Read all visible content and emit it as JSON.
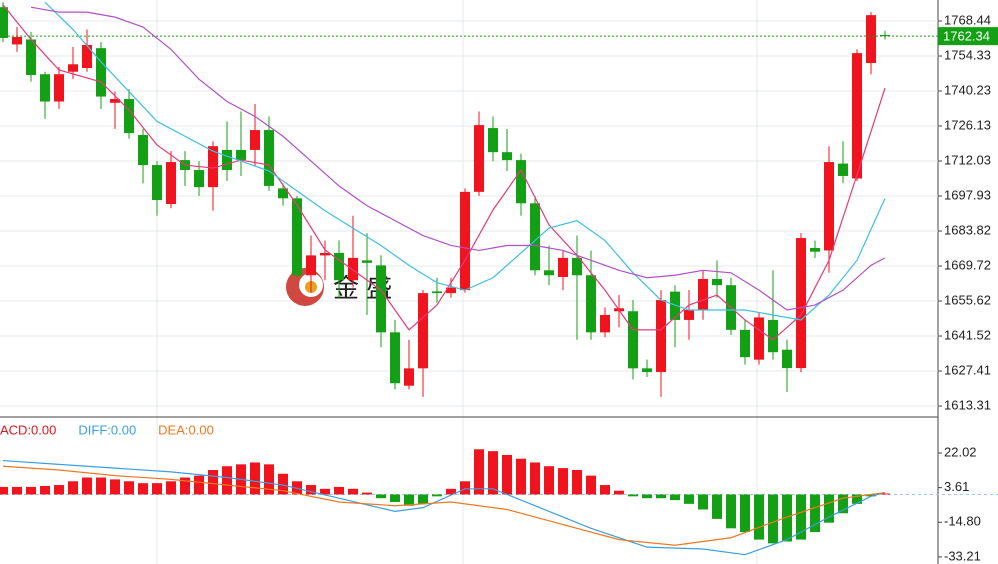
{
  "chart_data": [
    {
      "type": "candlestick",
      "open": [
        1774,
        1759,
        1761,
        1747,
        1736,
        1748,
        1749.5,
        1757.5,
        1735.5,
        1737,
        1722.5,
        1710.4,
        1694.7,
        1712.4,
        1708.4,
        1701.5,
        1716.5,
        1716.5,
        1716.5,
        1724.5,
        1701,
        1697,
        1666,
        1674,
        1675,
        1664,
        1672,
        1670,
        1643,
        1621.5,
        1628.5,
        1659.5,
        1658.8,
        1660,
        1699.6,
        1725.3,
        1715.6,
        1712.4,
        1695,
        1668,
        1665.3,
        1673,
        1666,
        1643,
        1651.5,
        1651.5,
        1628.5,
        1627,
        1659.4,
        1648,
        1652,
        1664.5,
        1662,
        1644,
        1632,
        1648,
        1636,
        1628.6,
        1677,
        1676,
        1711,
        1705,
        1751.5,
        1762.8
      ],
      "high": [
        1776,
        1766,
        1764,
        1748,
        1750,
        1758,
        1765,
        1760,
        1740,
        1741,
        1725,
        1712,
        1716,
        1716,
        1712,
        1720,
        1728,
        1732,
        1735,
        1730,
        1703,
        1698,
        1682,
        1680,
        1680,
        1690,
        1683,
        1674,
        1648,
        1640,
        1660,
        1665,
        1665,
        1701,
        1732,
        1730,
        1725,
        1715,
        1698,
        1678,
        1676,
        1682,
        1676,
        1653,
        1658,
        1656,
        1632,
        1660,
        1662,
        1660,
        1668,
        1672,
        1665,
        1648,
        1651,
        1668,
        1640,
        1683,
        1680,
        1718,
        1720,
        1757,
        1772,
        1764.5
      ],
      "low": [
        1760,
        1756,
        1744,
        1729,
        1733,
        1745,
        1748,
        1733,
        1725,
        1721,
        1703,
        1690,
        1693,
        1702,
        1698,
        1692,
        1704,
        1706,
        1710,
        1700,
        1694,
        1665,
        1659,
        1664,
        1657,
        1661,
        1650,
        1637,
        1620,
        1620,
        1617,
        1655,
        1657,
        1659,
        1698,
        1712,
        1708,
        1690,
        1666,
        1662,
        1660,
        1640,
        1640,
        1641,
        1645,
        1624,
        1625,
        1617,
        1637,
        1640,
        1648,
        1657,
        1642,
        1630,
        1630,
        1632,
        1619,
        1627,
        1673,
        1667,
        1703,
        1704,
        1747,
        1761
      ],
      "close": [
        1761.6,
        1762,
        1746.7,
        1736,
        1747,
        1751,
        1758.8,
        1738,
        1737,
        1723.3,
        1710.4,
        1696.3,
        1711.6,
        1708.4,
        1701.5,
        1718,
        1708.4,
        1712.4,
        1724.5,
        1702,
        1697,
        1666,
        1674,
        1675,
        1664,
        1673,
        1671,
        1643,
        1622.5,
        1628.5,
        1658.8,
        1658.8,
        1661,
        1699.6,
        1726.5,
        1715.6,
        1712.4,
        1695,
        1668,
        1666,
        1673,
        1666,
        1643,
        1650,
        1652.7,
        1628.5,
        1627,
        1656,
        1648,
        1652,
        1664.5,
        1662,
        1644,
        1633,
        1649,
        1635,
        1628.6,
        1681,
        1675.5,
        1711.6,
        1706,
        1755.5,
        1770.8,
        1762.34
      ],
      "up_color": "#f0141e",
      "down_color": "#14a014",
      "ylim": [
        1609.7,
        1776.9
      ],
      "yticks": [
        1768.44,
        1754.33,
        1740.23,
        1726.13,
        1712.03,
        1697.93,
        1683.82,
        1669.72,
        1655.62,
        1641.52,
        1627.41,
        1613.31
      ],
      "grid": true,
      "series": [
        {
          "color": "#e8387a",
          "x": [
            0,
            2,
            4,
            7,
            9,
            11,
            13,
            15,
            17,
            19,
            21,
            23,
            25,
            27,
            29,
            31,
            33,
            35,
            37,
            39,
            41,
            43,
            45,
            47,
            49,
            51,
            53,
            55,
            57,
            59,
            61,
            63
          ],
          "values": [
            1775,
            1761,
            1748.7,
            1743.9,
            1732.6,
            1718.5,
            1710.4,
            1709.2,
            1712.4,
            1710.4,
            1694.3,
            1676.2,
            1668.1,
            1660,
            1644,
            1654,
            1672,
            1692.3,
            1708.4,
            1686.3,
            1674,
            1660,
            1644,
            1644,
            1654,
            1658,
            1648,
            1640,
            1650,
            1672,
            1706.4,
            1741.4
          ]
        },
        {
          "color": "#3cc0e0",
          "x": [
            3,
            5,
            7,
            9,
            11,
            13,
            15,
            17,
            19,
            21,
            23,
            25,
            27,
            29,
            31,
            33,
            35,
            37,
            39,
            41,
            43,
            45,
            47,
            49,
            51,
            53,
            55,
            57,
            59,
            61,
            63
          ],
          "values": [
            1776,
            1765,
            1752,
            1740,
            1728,
            1722,
            1716,
            1712,
            1708,
            1700,
            1692,
            1685,
            1678,
            1670,
            1663,
            1660,
            1665,
            1675,
            1685,
            1688,
            1680,
            1667,
            1656,
            1652,
            1652,
            1652,
            1650,
            1648,
            1658,
            1672,
            1697
          ]
        },
        {
          "color": "#b050c8",
          "x": [
            2,
            4,
            6,
            8,
            10,
            12,
            14,
            16,
            18,
            20,
            22,
            24,
            26,
            28,
            30,
            32,
            34,
            36,
            38,
            40,
            42,
            44,
            46,
            48,
            50,
            52,
            54,
            56,
            58,
            60,
            62,
            63
          ],
          "values": [
            1774,
            1772,
            1772,
            1770,
            1766,
            1757,
            1745,
            1736,
            1730,
            1722,
            1712,
            1702,
            1694,
            1688,
            1682,
            1678,
            1676,
            1678,
            1678,
            1676,
            1672,
            1668,
            1665,
            1666,
            1668,
            1667,
            1660,
            1652,
            1654,
            1660,
            1670,
            1673
          ]
        }
      ],
      "last_price": {
        "value": 1762.34,
        "color": "#14a014"
      },
      "watermark": "金 盛"
    },
    {
      "type": "macd",
      "values": [
        4,
        4,
        4,
        4.5,
        5,
        7,
        9,
        9,
        8,
        7,
        6,
        6,
        7,
        9,
        10,
        13,
        15,
        16,
        17,
        16,
        11,
        7,
        5,
        3,
        4,
        3,
        1,
        -2,
        -4,
        -6,
        -5,
        -1,
        3,
        7,
        24,
        23,
        21,
        19,
        17,
        15,
        14,
        13,
        10,
        5,
        2,
        -1,
        -2,
        -2,
        -3,
        -5,
        -8,
        -13,
        -18,
        -20,
        -24,
        -26,
        -25,
        -24,
        -20,
        -15,
        -10,
        -5,
        -1,
        0.5
      ],
      "pos_color": "#f0141e",
      "neg_color": "#14a014",
      "ylim": [
        -35.9,
        40.1
      ],
      "yticks": [
        22.02,
        3.61,
        {
          "value": -14.8,
          "label": "-14.80"
        },
        -33.21
      ],
      "series": [
        {
          "color": "#3c9ee0",
          "x": [
            0,
            4,
            8,
            12,
            16,
            20,
            24,
            28,
            30,
            33,
            35,
            38,
            42,
            46,
            50,
            53,
            56,
            59,
            62,
            63
          ],
          "values": [
            18,
            16,
            14,
            12,
            9,
            5,
            -2,
            -9,
            -7,
            3,
            3,
            -6,
            -18,
            -28,
            -29,
            -32,
            -24,
            -12,
            -1,
            1
          ]
        },
        {
          "color": "#f07820",
          "x": [
            0,
            4,
            8,
            12,
            16,
            20,
            24,
            28,
            32,
            36,
            40,
            44,
            48,
            52,
            56,
            60,
            63
          ],
          "values": [
            15,
            13,
            10,
            8,
            5,
            2,
            -4,
            -6,
            -4,
            -8,
            -16,
            -24,
            -27,
            -23,
            -12,
            -2,
            1
          ]
        }
      ],
      "legend": [
        {
          "text": "ACD:0.00",
          "color": "#e0141e"
        },
        {
          "text": "DIFF:0.00",
          "color": "#3c9ee0"
        },
        {
          "text": "DEA:0.00",
          "color": "#f07820"
        }
      ]
    }
  ]
}
